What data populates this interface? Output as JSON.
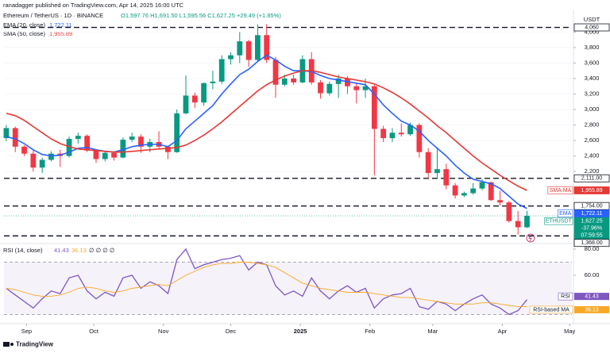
{
  "header": {
    "author": "ranadagger published on TradingView.com, Apr 14, 2025 16:00 UTC",
    "symbol": "Ethereum / TetherUS · 1D · BINANCE",
    "ohlc": "O1,597.76 H1,691.50 L1,595.56 C1,627.25 +29.49 (+1.85%)",
    "ema": "EMA (20, close)",
    "ema_value": "1,722.11",
    "sma": "SMA (50, close)",
    "sma_value": "1,955.89",
    "currency": "USDT",
    "brand": "TradingView"
  },
  "chart_data": [
    {
      "type": "candlestick",
      "up_color": "#089981",
      "down_color": "#f23645",
      "xlim": [
        -0.26,
        63
      ],
      "ylim": [
        1290,
        4260
      ],
      "yticks": [
        {
          "value": 2200,
          "label": "2,200"
        },
        {
          "value": 2400,
          "label": "2,400"
        },
        {
          "value": 2600,
          "label": "2,600"
        },
        {
          "value": 2800,
          "label": "2,800"
        },
        {
          "value": 3000,
          "label": "3,000"
        },
        {
          "value": 3200,
          "label": "3,200"
        },
        {
          "value": 3400,
          "label": "3,400"
        },
        {
          "value": 3600,
          "label": "3,600"
        },
        {
          "value": 3800,
          "label": "3,800"
        },
        {
          "value": 4000,
          "label": "4,000"
        }
      ],
      "levels": [
        {
          "value": 4060,
          "label": "4,060"
        },
        {
          "value": 2111,
          "label": "2,111.00"
        },
        {
          "value": 1754,
          "label": "1,754.00"
        },
        {
          "value": 1368,
          "label": "1,368.00"
        }
      ],
      "candles": {
        "open": [
          2630,
          2760,
          2520,
          2430,
          2250,
          2350,
          2430,
          2400,
          2620,
          2660,
          2470,
          2360,
          2440,
          2380,
          2610,
          2650,
          2520,
          2580,
          2520,
          2450,
          2950,
          3180,
          3090,
          3340,
          3360,
          3650,
          3700,
          3880,
          3640,
          3960,
          3640,
          3320,
          3400,
          3350,
          3650,
          3350,
          3210,
          3330,
          3400,
          3300,
          3250,
          3300,
          2750,
          2630,
          2700,
          2680,
          2800,
          2450,
          2180,
          2230,
          2020,
          1890,
          1920,
          1980,
          2060,
          1830,
          1800,
          1560,
          1480
        ],
        "high": [
          2800,
          2780,
          2540,
          2470,
          2380,
          2460,
          2480,
          2650,
          2700,
          2680,
          2490,
          2470,
          2460,
          2640,
          2700,
          2680,
          2620,
          2720,
          2530,
          3000,
          3440,
          3220,
          3350,
          3500,
          3700,
          3740,
          4000,
          3900,
          4100,
          4100,
          3680,
          3450,
          3450,
          3700,
          3740,
          3380,
          3360,
          3450,
          3430,
          3350,
          3400,
          3320,
          2790,
          2760,
          2820,
          2830,
          2820,
          2500,
          2500,
          2300,
          2050,
          1940,
          2050,
          2100,
          2070,
          1950,
          1820,
          1690,
          1691.5
        ],
        "low": [
          2590,
          2450,
          2400,
          2200,
          2180,
          2330,
          2260,
          2380,
          2560,
          2450,
          2310,
          2330,
          2340,
          2370,
          2580,
          2440,
          2450,
          2500,
          2360,
          2440,
          2940,
          3020,
          3050,
          3260,
          3330,
          3580,
          3600,
          3550,
          3620,
          3600,
          3150,
          3300,
          3320,
          3340,
          3320,
          3140,
          3180,
          3150,
          3200,
          3080,
          3150,
          2150,
          2580,
          2580,
          2650,
          2660,
          2380,
          2100,
          2100,
          1970,
          1850,
          1870,
          1900,
          1960,
          1820,
          1760,
          1540,
          1385,
          1470
        ],
        "close": [
          2760,
          2520,
          2430,
          2250,
          2350,
          2430,
          2400,
          2620,
          2660,
          2470,
          2360,
          2440,
          2380,
          2610,
          2650,
          2520,
          2580,
          2520,
          2450,
          2950,
          3180,
          3090,
          3340,
          3360,
          3650,
          3700,
          3880,
          3640,
          3960,
          3640,
          3320,
          3400,
          3350,
          3650,
          3350,
          3210,
          3330,
          3400,
          3300,
          3250,
          3300,
          2750,
          2630,
          2700,
          2680,
          2800,
          2450,
          2180,
          2230,
          2020,
          1890,
          1920,
          1980,
          2060,
          1830,
          1800,
          1560,
          1480,
          1627.25
        ]
      },
      "series": [
        {
          "name": "EMA",
          "color": "#2962ff",
          "value_label": "1,722.11",
          "values": [
            2650,
            2620,
            2560,
            2480,
            2420,
            2400,
            2410,
            2450,
            2500,
            2510,
            2480,
            2460,
            2450,
            2480,
            2520,
            2540,
            2550,
            2550,
            2520,
            2600,
            2750,
            2850,
            2950,
            3050,
            3200,
            3330,
            3450,
            3520,
            3620,
            3700,
            3640,
            3560,
            3500,
            3500,
            3490,
            3440,
            3400,
            3380,
            3360,
            3340,
            3320,
            3200,
            3060,
            2950,
            2850,
            2800,
            2720,
            2600,
            2500,
            2400,
            2280,
            2180,
            2100,
            2070,
            2040,
            1980,
            1880,
            1780,
            1722.11
          ]
        },
        {
          "name": "SMA:MA",
          "color": "#e53935",
          "value_label": "1,955.89",
          "values": [
            2950,
            2920,
            2860,
            2780,
            2700,
            2620,
            2560,
            2520,
            2490,
            2480,
            2470,
            2460,
            2450,
            2450,
            2460,
            2470,
            2480,
            2490,
            2500,
            2510,
            2540,
            2600,
            2670,
            2750,
            2840,
            2940,
            3040,
            3140,
            3240,
            3320,
            3380,
            3430,
            3470,
            3500,
            3500,
            3480,
            3450,
            3420,
            3400,
            3380,
            3360,
            3330,
            3280,
            3220,
            3150,
            3070,
            2980,
            2890,
            2790,
            2700,
            2600,
            2500,
            2400,
            2310,
            2230,
            2150,
            2080,
            2010,
            1955.89
          ]
        }
      ],
      "price_tag": {
        "name": "ETHUSDT",
        "value": 1627.25,
        "label": "1,627.25",
        "change": "-37.96%",
        "countdown": "07:59:55",
        "color": "#089981"
      }
    },
    {
      "type": "line",
      "title": "RSI (14, close)",
      "extra": "∅ ∅ ∅ ∅",
      "xlim": [
        -0.26,
        63
      ],
      "ylim": [
        27.9,
        82.4
      ],
      "yticks": [
        {
          "value": 80,
          "label": "80.00"
        },
        {
          "value": 60,
          "label": "60.00"
        }
      ],
      "band": [
        30,
        70
      ],
      "xticks": [
        {
          "value": 2.25,
          "label": "Sep"
        },
        {
          "value": 9.75,
          "label": "Oct"
        },
        {
          "value": 17.5,
          "label": "Nov"
        },
        {
          "value": 25,
          "label": "Dec"
        },
        {
          "value": 32.75,
          "label": "2025"
        },
        {
          "value": 40.5,
          "label": "Feb"
        },
        {
          "value": 47.5,
          "label": "Mar"
        },
        {
          "value": 55.25,
          "label": "Apr"
        },
        {
          "value": 62.75,
          "label": "May"
        }
      ],
      "series": [
        {
          "name": "RSI",
          "color": "#7e57c2",
          "values": [
            50,
            45,
            40,
            35,
            42,
            48,
            46,
            58,
            60,
            48,
            42,
            47,
            44,
            58,
            60,
            50,
            55,
            52,
            46,
            72,
            80,
            65,
            68,
            70,
            72,
            73,
            75,
            64,
            70,
            68,
            52,
            45,
            48,
            44,
            58,
            48,
            42,
            48,
            52,
            47,
            50,
            35,
            42,
            45,
            46,
            50,
            36,
            34,
            40,
            38,
            33,
            38,
            42,
            45,
            38,
            35,
            30,
            33,
            41.43
          ]
        },
        {
          "name": "RSI-based MA",
          "color": "#f9a825",
          "values": [
            50,
            49,
            47,
            45,
            44,
            44,
            45,
            47,
            50,
            51,
            50,
            48,
            47,
            48,
            50,
            51,
            52,
            53,
            52,
            56,
            60,
            63,
            66,
            68,
            69,
            69,
            70,
            70,
            69,
            68,
            66,
            62,
            58,
            54,
            52,
            50,
            49,
            48,
            47,
            47,
            47,
            46,
            45,
            44,
            43,
            43,
            42,
            41,
            40,
            39,
            38,
            38,
            38,
            39,
            39,
            38,
            37,
            36,
            36.13
          ]
        }
      ]
    }
  ]
}
